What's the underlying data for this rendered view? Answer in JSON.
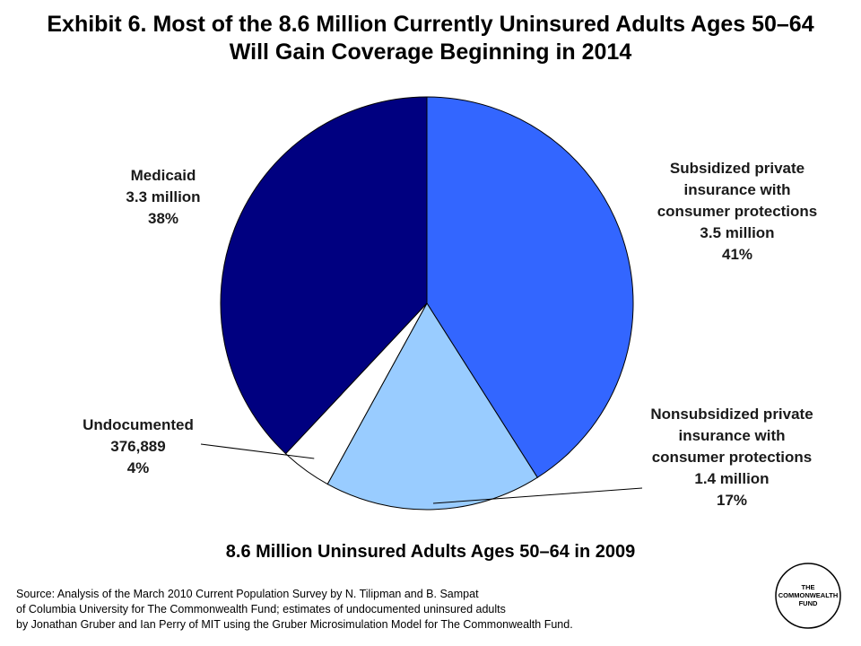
{
  "title": {
    "line1": "Exhibit 6. Most of the 8.6 Million Currently Uninsured Adults Ages 50–64",
    "line2": "Will Gain Coverage Beginning in 2014"
  },
  "chart_data": {
    "type": "pie",
    "subtitle": "8.6 Million Uninsured Adults Ages 50–64 in 2009",
    "slices": [
      {
        "key": "subsidized",
        "label_lines": [
          "Subsidized private",
          "insurance with",
          "consumer protections"
        ],
        "amount": "3.5 million",
        "percent_label": "41%",
        "value": 41,
        "color": "#3366ff"
      },
      {
        "key": "nonsubsidized",
        "label_lines": [
          "Nonsubsidized private",
          "insurance with",
          "consumer protections"
        ],
        "amount": "1.4 million",
        "percent_label": "17%",
        "value": 17,
        "color": "#99ccff"
      },
      {
        "key": "undocumented",
        "label_lines": [
          "Undocumented"
        ],
        "amount": "376,889",
        "percent_label": "4%",
        "value": 4,
        "color": "#ffffff"
      },
      {
        "key": "medicaid",
        "label_lines": [
          "Medicaid"
        ],
        "amount": "3.3 million",
        "percent_label": "38%",
        "value": 38,
        "color": "#000080"
      }
    ]
  },
  "source": {
    "line1": "Source: Analysis of the March 2010 Current Population Survey by N. Tilipman and B. Sampat",
    "line2": "of Columbia University for The Commonwealth Fund; estimates of undocumented uninsured adults",
    "line3": "by Jonathan Gruber and Ian Perry of MIT using the Gruber Microsimulation Model for The Commonwealth Fund."
  },
  "logo": {
    "line1": "THE",
    "line2": "COMMONWEALTH",
    "line3": "FUND"
  }
}
